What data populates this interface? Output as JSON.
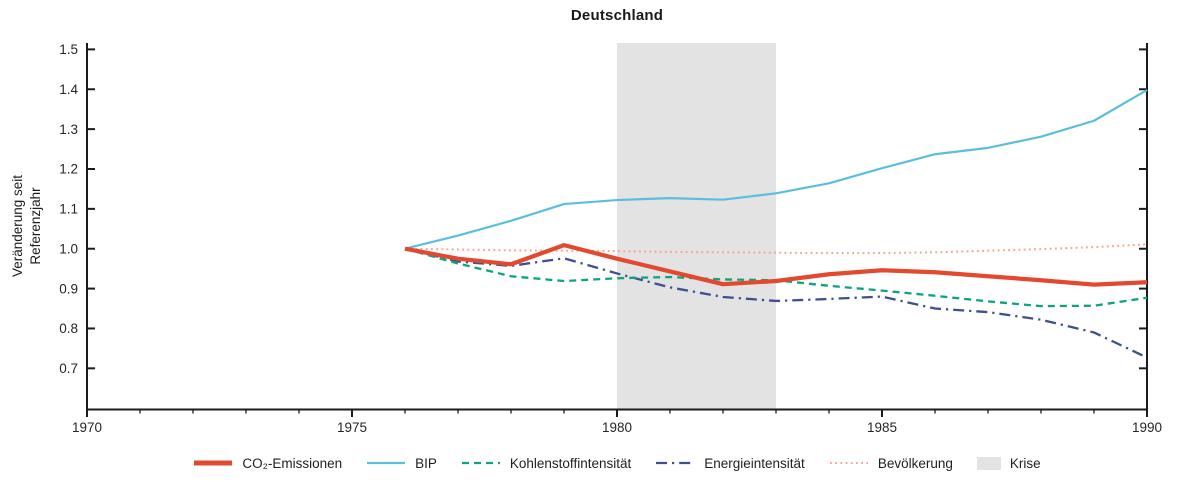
{
  "title": "Deutschland",
  "chart_data": {
    "type": "line",
    "title": "Deutschland",
    "ylabel": "Veränderung seit Referenzjahr",
    "ylabel_lines": [
      "Veränderung seit",
      "Referenzjahr"
    ],
    "x": [
      1976,
      1977,
      1978,
      1979,
      1980,
      1981,
      1982,
      1983,
      1984,
      1985,
      1986,
      1987,
      1988,
      1989,
      1990
    ],
    "series": [
      {
        "id": "co2",
        "name": "CO₂-Emissionen",
        "color": "#e2492f",
        "style": "solid",
        "width": 4.2,
        "values": [
          1.0,
          0.975,
          0.961,
          1.009,
          0.975,
          0.943,
          0.911,
          0.919,
          0.936,
          0.946,
          0.941,
          0.931,
          0.921,
          0.91,
          0.916
        ]
      },
      {
        "id": "bip",
        "name": "BIP",
        "color": "#5bbedd",
        "style": "solid",
        "width": 2.2,
        "values": [
          1.0,
          1.033,
          1.07,
          1.112,
          1.122,
          1.127,
          1.123,
          1.139,
          1.164,
          1.202,
          1.237,
          1.253,
          1.281,
          1.321,
          1.398
        ]
      },
      {
        "id": "kohlenstoffintensitaet",
        "name": "Kohlenstoffintensität",
        "color": "#0ba47e",
        "style": "dashed",
        "width": 2.3,
        "values": [
          1.0,
          0.963,
          0.931,
          0.919,
          0.926,
          0.929,
          0.923,
          0.921,
          0.907,
          0.895,
          0.882,
          0.868,
          0.856,
          0.857,
          0.877
        ]
      },
      {
        "id": "energieintensitaet",
        "name": "Energieintensität",
        "color": "#3d508f",
        "style": "dashdot",
        "width": 2.3,
        "values": [
          1.0,
          0.968,
          0.957,
          0.976,
          0.938,
          0.903,
          0.879,
          0.869,
          0.874,
          0.88,
          0.85,
          0.841,
          0.822,
          0.79,
          0.727
        ]
      },
      {
        "id": "bevoelkerung",
        "name": "Bevölkerung",
        "color": "#f8a68a",
        "style": "dotted",
        "width": 2.1,
        "values": [
          1.0,
          0.998,
          0.996,
          0.995,
          0.994,
          0.992,
          0.991,
          0.99,
          0.989,
          0.989,
          0.991,
          0.995,
          0.999,
          1.004,
          1.011
        ]
      }
    ],
    "band": {
      "id": "krise",
      "label": "Krise",
      "x_start": 1980,
      "x_end": 1983,
      "color": "#e3e3e3"
    },
    "xlim": [
      1970,
      1990
    ],
    "ylim": [
      0.598,
      1.516
    ],
    "xticks": [
      1970,
      1975,
      1980,
      1985,
      1990
    ],
    "xminor_step": 1,
    "yticks": [
      0.7,
      0.8,
      0.9,
      1.0,
      1.1,
      1.2,
      1.3,
      1.4,
      1.5
    ],
    "grid": false,
    "legend_position": "bottom-center",
    "colors": {
      "axis": "#1b1b1b",
      "tick_label": "#262626"
    }
  }
}
